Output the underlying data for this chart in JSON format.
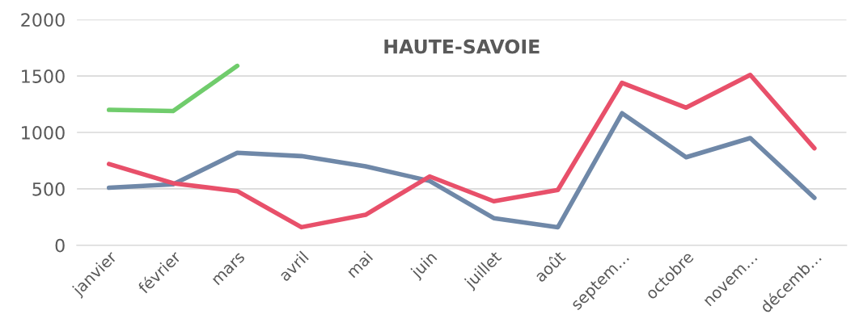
{
  "chart_data": {
    "type": "line",
    "title": "HAUTE-SAVOIE",
    "categories": [
      "janvier",
      "février",
      "mars",
      "avril",
      "mai",
      "juin",
      "juillet",
      "août",
      "septem…",
      "octobre",
      "novem…",
      "décemb…"
    ],
    "series": [
      {
        "color": "#6f88a8",
        "values": [
          510,
          540,
          820,
          790,
          700,
          570,
          240,
          160,
          1170,
          780,
          950,
          420
        ]
      },
      {
        "color": "#e8506a",
        "values": [
          720,
          550,
          480,
          160,
          270,
          610,
          390,
          490,
          1440,
          1220,
          1510,
          860
        ]
      },
      {
        "color": "#70cc6c",
        "values": [
          1200,
          1190,
          1590,
          null,
          null,
          null,
          null,
          null,
          null,
          null,
          null,
          null
        ]
      }
    ],
    "ylim": [
      0,
      2000
    ],
    "yticks": [
      0,
      500,
      1000,
      1500,
      2000
    ],
    "grid": "y",
    "marker": "none",
    "line_style": "solid"
  }
}
